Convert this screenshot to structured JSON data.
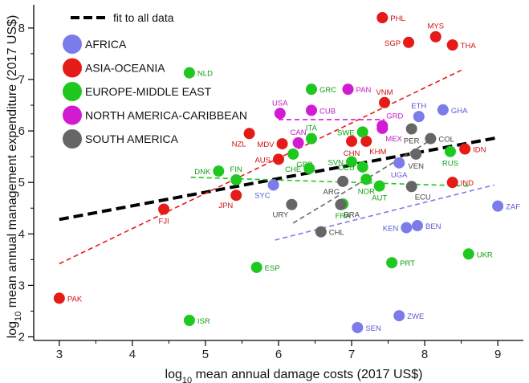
{
  "chart_data": {
    "type": "scatter",
    "xlabel": {
      "prefix": "log",
      "sub": "10",
      "rest": " mean annual damage costs (2017 US$)"
    },
    "ylabel": {
      "prefix": "log",
      "sub": "10",
      "rest": " mean annual management expenditure (2017 US$)"
    },
    "xlim": [
      2.65,
      9.35
    ],
    "ylim": [
      1.93,
      8.45
    ],
    "xticks": [
      3,
      4,
      5,
      6,
      7,
      8,
      9
    ],
    "yticks": [
      2,
      3,
      4,
      5,
      6,
      7,
      8
    ],
    "grid": false,
    "legend_position": "top-left",
    "colors": {
      "AFRICA": "#7b7bea",
      "ASIA-OCEANIA": "#e41b17",
      "EUROPE-MIDDLE EAST": "#1ec81e",
      "NORTH AMERICA-CARIBBEAN": "#d21ad2",
      "SOUTH AMERICA": "#666666",
      "fit": "#000000"
    },
    "label_colors": {
      "AFRICA": "#5a5ad8",
      "ASIA-OCEANIA": "#d01010",
      "EUROPE-MIDDLE EAST": "#12a012",
      "NORTH AMERICA-CARIBBEAN": "#c21ac2",
      "SOUTH AMERICA": "#444444"
    },
    "legend": {
      "fit_label": "fit to all data",
      "regions": [
        "AFRICA",
        "ASIA-OCEANIA",
        "EUROPE-MIDDLE EAST",
        "NORTH AMERICA-CARIBBEAN",
        "SOUTH AMERICA"
      ]
    },
    "fit_lines": [
      {
        "region": "ALL",
        "x": [
          3.0,
          9.0
        ],
        "y": [
          4.28,
          5.87
        ]
      },
      {
        "region": "ASIA-OCEANIA",
        "x": [
          3.0,
          8.5
        ],
        "y": [
          3.42,
          7.18
        ]
      },
      {
        "region": "EUROPE-MIDDLE EAST",
        "x": [
          4.8,
          8.6
        ],
        "y": [
          5.1,
          4.93
        ]
      },
      {
        "region": "NORTH AMERICA-CARIBBEAN",
        "x": [
          6.0,
          7.45
        ],
        "y": [
          6.22,
          6.22
        ]
      },
      {
        "region": "SOUTH AMERICA",
        "x": [
          6.2,
          8.15
        ],
        "y": [
          4.21,
          5.88
        ]
      },
      {
        "region": "AFRICA",
        "x": [
          5.95,
          8.95
        ],
        "y": [
          3.88,
          4.95
        ]
      }
    ],
    "points": [
      {
        "label": "PHL",
        "x": 7.42,
        "y": 8.2,
        "region": "ASIA-OCEANIA",
        "pos": "right"
      },
      {
        "label": "MYS",
        "x": 8.15,
        "y": 7.83,
        "region": "ASIA-OCEANIA",
        "pos": "above"
      },
      {
        "label": "SGP",
        "x": 7.78,
        "y": 7.72,
        "region": "ASIA-OCEANIA",
        "pos": "left"
      },
      {
        "label": "THA",
        "x": 8.38,
        "y": 7.67,
        "region": "ASIA-OCEANIA",
        "pos": "right"
      },
      {
        "label": "VNM",
        "x": 7.45,
        "y": 6.55,
        "region": "ASIA-OCEANIA",
        "pos": "above"
      },
      {
        "label": "NZL",
        "x": 5.6,
        "y": 5.95,
        "region": "ASIA-OCEANIA",
        "pos": "belowleft"
      },
      {
        "label": "MDV",
        "x": 6.05,
        "y": 5.75,
        "region": "ASIA-OCEANIA",
        "pos": "left"
      },
      {
        "label": "AUS",
        "x": 6.0,
        "y": 5.45,
        "region": "ASIA-OCEANIA",
        "pos": "left"
      },
      {
        "label": "CHN",
        "x": 7.0,
        "y": 5.8,
        "region": "ASIA-OCEANIA",
        "pos": "below"
      },
      {
        "label": "KHM",
        "x": 7.2,
        "y": 5.8,
        "region": "ASIA-OCEANIA",
        "pos": "belowright"
      },
      {
        "label": "IDN",
        "x": 8.55,
        "y": 5.65,
        "region": "ASIA-OCEANIA",
        "pos": "right"
      },
      {
        "label": "IND",
        "x": 8.38,
        "y": 5.0,
        "region": "ASIA-OCEANIA",
        "pos": "right"
      },
      {
        "label": "JPN",
        "x": 5.42,
        "y": 4.75,
        "region": "ASIA-OCEANIA",
        "pos": "belowleft"
      },
      {
        "label": "FJI",
        "x": 4.43,
        "y": 4.48,
        "region": "ASIA-OCEANIA",
        "pos": "below"
      },
      {
        "label": "PAK",
        "x": 3.0,
        "y": 2.75,
        "region": "ASIA-OCEANIA",
        "pos": "right"
      },
      {
        "label": "NLD",
        "x": 4.78,
        "y": 7.13,
        "region": "EUROPE-MIDDLE EAST",
        "pos": "right"
      },
      {
        "label": "GRC",
        "x": 6.45,
        "y": 6.81,
        "region": "EUROPE-MIDDLE EAST",
        "pos": "right"
      },
      {
        "label": "ITA",
        "x": 6.45,
        "y": 5.85,
        "region": "EUROPE-MIDDLE EAST",
        "pos": "above"
      },
      {
        "label": "SWE",
        "x": 7.15,
        "y": 5.98,
        "region": "EUROPE-MIDDLE EAST",
        "pos": "left"
      },
      {
        "label": "GBR",
        "x": 6.2,
        "y": 5.55,
        "region": "EUROPE-MIDDLE EAST",
        "pos": "belowright"
      },
      {
        "label": "CHE",
        "x": 6.42,
        "y": 5.27,
        "region": "EUROPE-MIDDLE EAST",
        "pos": "left"
      },
      {
        "label": "SVN",
        "x": 7.0,
        "y": 5.4,
        "region": "EUROPE-MIDDLE EAST",
        "pos": "left"
      },
      {
        "label": "DEU",
        "x": 7.15,
        "y": 5.3,
        "region": "EUROPE-MIDDLE EAST",
        "pos": "left"
      },
      {
        "label": "NOR",
        "x": 7.2,
        "y": 5.06,
        "region": "EUROPE-MIDDLE EAST",
        "pos": "below"
      },
      {
        "label": "RUS",
        "x": 8.35,
        "y": 5.6,
        "region": "EUROPE-MIDDLE EAST",
        "pos": "below"
      },
      {
        "label": "DNK",
        "x": 5.18,
        "y": 5.22,
        "region": "EUROPE-MIDDLE EAST",
        "pos": "left"
      },
      {
        "label": "FIN",
        "x": 5.42,
        "y": 5.05,
        "region": "EUROPE-MIDDLE EAST",
        "pos": "above"
      },
      {
        "label": "AUT",
        "x": 7.38,
        "y": 4.93,
        "region": "EUROPE-MIDDLE EAST",
        "pos": "below"
      },
      {
        "label": "FRA",
        "x": 6.88,
        "y": 4.58,
        "region": "EUROPE-MIDDLE EAST",
        "pos": "below"
      },
      {
        "label": "ESP",
        "x": 5.7,
        "y": 3.35,
        "region": "EUROPE-MIDDLE EAST",
        "pos": "right"
      },
      {
        "label": "PRT",
        "x": 7.55,
        "y": 3.44,
        "region": "EUROPE-MIDDLE EAST",
        "pos": "right"
      },
      {
        "label": "UKR",
        "x": 8.6,
        "y": 3.61,
        "region": "EUROPE-MIDDLE EAST",
        "pos": "right"
      },
      {
        "label": "ISR",
        "x": 4.78,
        "y": 2.32,
        "region": "EUROPE-MIDDLE EAST",
        "pos": "right"
      },
      {
        "label": "PAN",
        "x": 6.95,
        "y": 6.81,
        "region": "NORTH AMERICA-CARIBBEAN",
        "pos": "right"
      },
      {
        "label": "USA",
        "x": 6.02,
        "y": 6.34,
        "region": "NORTH AMERICA-CARIBBEAN",
        "pos": "above"
      },
      {
        "label": "CUB",
        "x": 6.45,
        "y": 6.4,
        "region": "NORTH AMERICA-CARIBBEAN",
        "pos": "right"
      },
      {
        "label": "GRD",
        "x": 7.42,
        "y": 6.1,
        "region": "NORTH AMERICA-CARIBBEAN",
        "pos": "aboveright"
      },
      {
        "label": "MEX",
        "x": 7.42,
        "y": 6.05,
        "region": "NORTH AMERICA-CARIBBEAN",
        "pos": "belowright"
      },
      {
        "label": "CAN",
        "x": 6.27,
        "y": 5.77,
        "region": "NORTH AMERICA-CARIBBEAN",
        "pos": "above"
      },
      {
        "label": "ETH",
        "x": 7.92,
        "y": 6.28,
        "region": "AFRICA",
        "pos": "above"
      },
      {
        "label": "GHA",
        "x": 8.25,
        "y": 6.41,
        "region": "AFRICA",
        "pos": "right"
      },
      {
        "label": "UGA",
        "x": 7.65,
        "y": 5.38,
        "region": "AFRICA",
        "pos": "below"
      },
      {
        "label": "SYC",
        "x": 5.93,
        "y": 4.95,
        "region": "AFRICA",
        "pos": "belowleft"
      },
      {
        "label": "ZAF",
        "x": 9.0,
        "y": 4.54,
        "region": "AFRICA",
        "pos": "right"
      },
      {
        "label": "KEN",
        "x": 7.75,
        "y": 4.12,
        "region": "AFRICA",
        "pos": "left"
      },
      {
        "label": "BEN",
        "x": 7.9,
        "y": 4.16,
        "region": "AFRICA",
        "pos": "right"
      },
      {
        "label": "ZWE",
        "x": 7.65,
        "y": 2.41,
        "region": "AFRICA",
        "pos": "right"
      },
      {
        "label": "SEN",
        "x": 7.08,
        "y": 2.18,
        "region": "AFRICA",
        "pos": "right"
      },
      {
        "label": "PER",
        "x": 7.82,
        "y": 6.04,
        "region": "SOUTH AMERICA",
        "pos": "below"
      },
      {
        "label": "COL",
        "x": 8.08,
        "y": 5.85,
        "region": "SOUTH AMERICA",
        "pos": "right"
      },
      {
        "label": "VEN",
        "x": 7.88,
        "y": 5.55,
        "region": "SOUTH AMERICA",
        "pos": "below"
      },
      {
        "label": "ARG",
        "x": 6.88,
        "y": 5.02,
        "region": "SOUTH AMERICA",
        "pos": "belowleft"
      },
      {
        "label": "ECU",
        "x": 7.82,
        "y": 4.92,
        "region": "SOUTH AMERICA",
        "pos": "belowright"
      },
      {
        "label": "URY",
        "x": 6.18,
        "y": 4.57,
        "region": "SOUTH AMERICA",
        "pos": "belowleft"
      },
      {
        "label": "BRA",
        "x": 6.85,
        "y": 4.57,
        "region": "SOUTH AMERICA",
        "pos": "belowright"
      },
      {
        "label": "CHL",
        "x": 6.58,
        "y": 4.04,
        "region": "SOUTH AMERICA",
        "pos": "right"
      }
    ]
  }
}
